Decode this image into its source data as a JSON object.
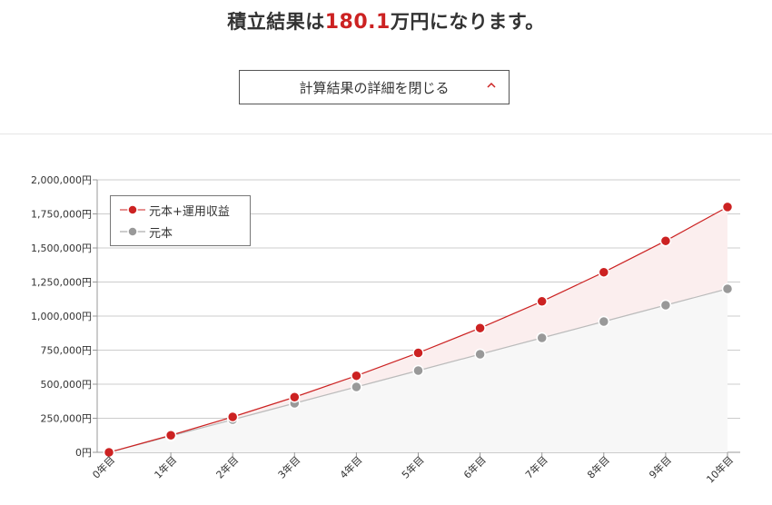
{
  "header": {
    "prefix": "積立結果は",
    "amount": "180.1",
    "suffix": "万円になります。"
  },
  "toggle": {
    "label": "計算結果の詳細を閉じる"
  },
  "colors": {
    "total": "#cc2222",
    "principal": "#999999",
    "amount": "#cc2222"
  },
  "icons": {
    "toggle": "chevron-up-icon"
  },
  "chart_data": {
    "type": "line",
    "categories": [
      "0年目",
      "1年目",
      "2年目",
      "3年目",
      "4年目",
      "5年目",
      "6年目",
      "7年目",
      "8年目",
      "9年目",
      "10年目"
    ],
    "series": [
      {
        "name": "元本+運用収益",
        "values": [
          0,
          125000,
          260000,
          405000,
          562000,
          730000,
          912000,
          1108000,
          1322000,
          1552000,
          1801000
        ]
      },
      {
        "name": "元本",
        "values": [
          0,
          120000,
          240000,
          360000,
          480000,
          600000,
          720000,
          840000,
          960000,
          1080000,
          1200000
        ]
      }
    ],
    "y_ticks": [
      "0円",
      "250,000円",
      "500,000円",
      "750,000円",
      "1,000,000円",
      "1,250,000円",
      "1,500,000円",
      "1,750,000円",
      "2,000,000円"
    ],
    "ylim": [
      0,
      2000000
    ],
    "grid": true,
    "legend_position": "top-left"
  }
}
